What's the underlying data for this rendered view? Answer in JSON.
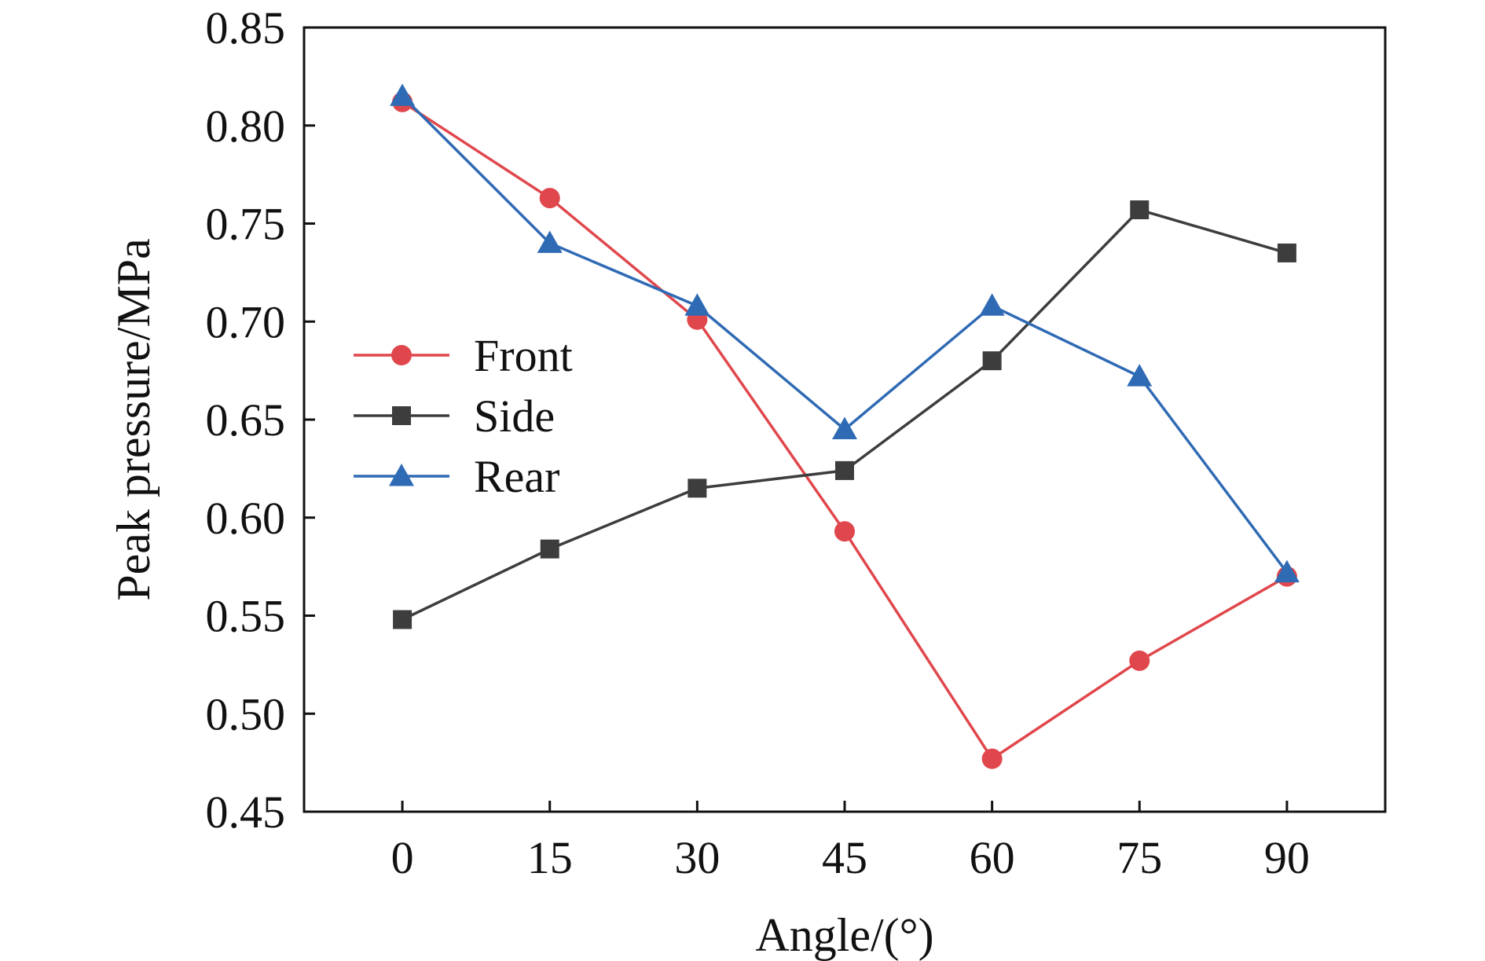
{
  "chart_data": {
    "type": "line",
    "title": "",
    "xlabel": "Angle/(°)",
    "ylabel": "Peak pressure/MPa",
    "x": [
      0,
      15,
      30,
      45,
      60,
      75,
      90
    ],
    "x_tick_labels": [
      "0",
      "15",
      "30",
      "45",
      "60",
      "75",
      "90"
    ],
    "xlim": [
      -10,
      100
    ],
    "ylim": [
      0.45,
      0.85
    ],
    "y_ticks": [
      0.45,
      0.5,
      0.55,
      0.6,
      0.65,
      0.7,
      0.75,
      0.8,
      0.85
    ],
    "y_tick_labels": [
      "0.45",
      "0.50",
      "0.55",
      "0.60",
      "0.65",
      "0.70",
      "0.75",
      "0.80",
      "0.85"
    ],
    "grid": false,
    "legend_position": "middle-left",
    "series": [
      {
        "name": "Front",
        "marker": "circle",
        "color": "#e0474c",
        "values": [
          0.812,
          0.763,
          0.701,
          0.593,
          0.477,
          0.527,
          0.57
        ]
      },
      {
        "name": "Side",
        "marker": "square",
        "color": "#3d3d3d",
        "values": [
          0.548,
          0.584,
          0.615,
          0.624,
          0.68,
          0.757,
          0.735
        ]
      },
      {
        "name": "Rear",
        "marker": "triangle",
        "color": "#2f6ab4",
        "values": [
          0.815,
          0.74,
          0.708,
          0.645,
          0.708,
          0.672,
          0.572
        ]
      }
    ]
  }
}
